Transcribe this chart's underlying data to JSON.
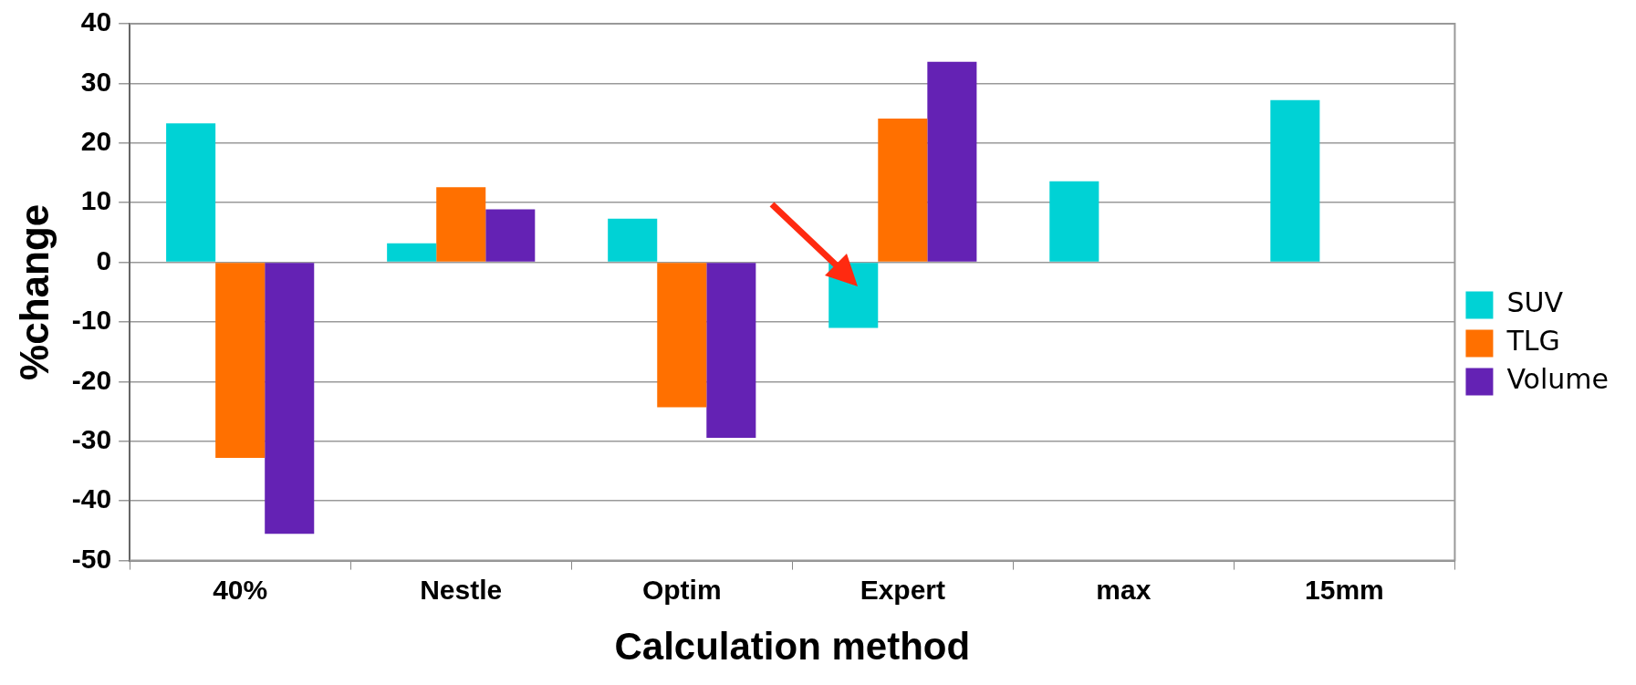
{
  "chart_data": {
    "type": "bar",
    "xlabel": "Calculation method",
    "ylabel": "%change",
    "categories": [
      "40%",
      "Nestle",
      "Optim",
      "Expert",
      "max",
      "15mm"
    ],
    "series": [
      {
        "name": "SUV",
        "color": "#00d2d5",
        "values": [
          23.3,
          3.2,
          7.3,
          -11.0,
          13.6,
          27.2
        ]
      },
      {
        "name": "TLG",
        "color": "#ff7000",
        "values": [
          -32.8,
          12.6,
          -24.3,
          24.1,
          null,
          null
        ]
      },
      {
        "name": "Volume",
        "color": "#6422b4",
        "values": [
          -45.5,
          8.9,
          -29.4,
          33.6,
          null,
          null
        ]
      }
    ],
    "ylim": [
      -50,
      40
    ],
    "yticks": [
      -50,
      -40,
      -30,
      -20,
      -10,
      0,
      10,
      20,
      30,
      40
    ],
    "grid": "y",
    "legend": "right"
  }
}
